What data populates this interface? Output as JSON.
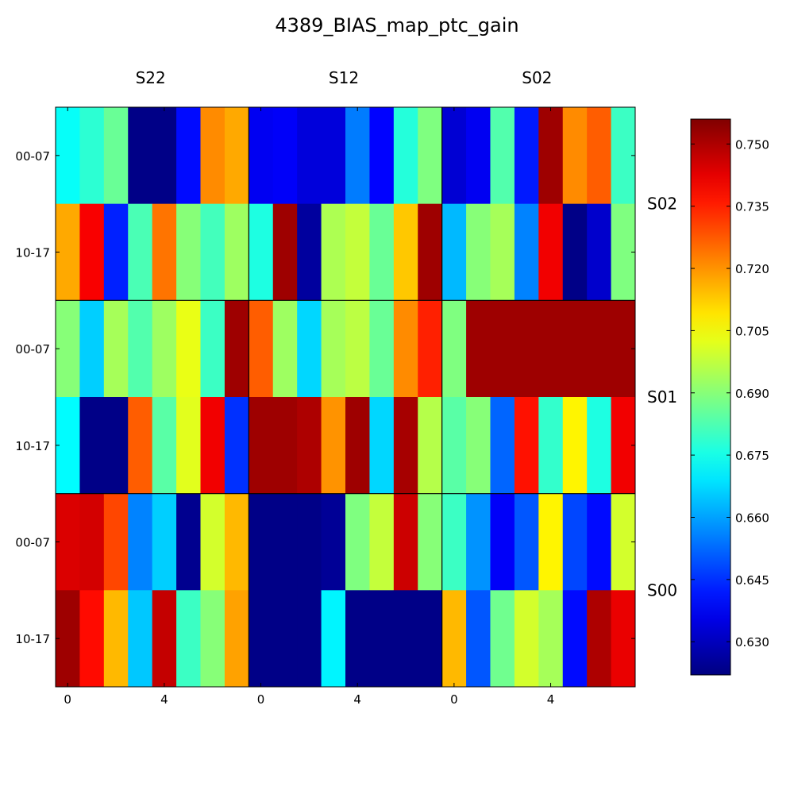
{
  "chart_data": {
    "type": "heatmap",
    "title": "4389_BIAS_map_ptc_gain",
    "column_group_labels": [
      "S22",
      "S12",
      "S02"
    ],
    "row_group_labels": [
      "S02",
      "S01",
      "S00"
    ],
    "row_tick_labels": [
      "00-07",
      "10-17",
      "00-07",
      "10-17",
      "00-07",
      "10-17"
    ],
    "x_tick_labels": [
      "0",
      "4",
      "0",
      "4",
      "0",
      "4"
    ],
    "x_tick_positions": [
      0,
      4,
      8,
      12,
      16,
      20
    ],
    "n_columns": 24,
    "n_rows": 6,
    "colormap": "jet",
    "colorbar": {
      "min": 0.622,
      "max": 0.756,
      "ticks": [
        0.63,
        0.645,
        0.66,
        0.675,
        0.69,
        0.705,
        0.72,
        0.735,
        0.75
      ],
      "tick_labels": [
        "0.630",
        "0.645",
        "0.660",
        "0.675",
        "0.690",
        "0.705",
        "0.720",
        "0.735",
        "0.750"
      ]
    },
    "values": [
      [
        0.673,
        0.678,
        0.686,
        0.623,
        0.623,
        0.64,
        0.721,
        0.717,
        0.637,
        0.638,
        0.634,
        0.634,
        0.655,
        0.639,
        0.677,
        0.689,
        0.633,
        0.637,
        0.683,
        0.642,
        0.752,
        0.721,
        0.727,
        0.68
      ],
      [
        0.717,
        0.74,
        0.643,
        0.682,
        0.724,
        0.69,
        0.681,
        0.693,
        0.676,
        0.752,
        0.626,
        0.695,
        0.698,
        0.686,
        0.713,
        0.752,
        0.663,
        0.69,
        0.694,
        0.656,
        0.741,
        0.623,
        0.632,
        0.689
      ],
      [
        0.69,
        0.666,
        0.694,
        0.683,
        0.693,
        0.703,
        0.68,
        0.752,
        0.727,
        0.693,
        0.667,
        0.694,
        0.697,
        0.686,
        0.721,
        0.735,
        0.689,
        0.752,
        0.752,
        0.752,
        0.752,
        0.752,
        0.752,
        0.752
      ],
      [
        0.672,
        0.623,
        0.623,
        0.727,
        0.684,
        0.702,
        0.741,
        0.645,
        0.752,
        0.752,
        0.75,
        0.72,
        0.752,
        0.667,
        0.751,
        0.696,
        0.684,
        0.69,
        0.652,
        0.737,
        0.679,
        0.707,
        0.676,
        0.741
      ],
      [
        0.744,
        0.745,
        0.73,
        0.656,
        0.666,
        0.624,
        0.7,
        0.715,
        0.623,
        0.623,
        0.623,
        0.625,
        0.689,
        0.698,
        0.746,
        0.69,
        0.68,
        0.658,
        0.638,
        0.65,
        0.707,
        0.648,
        0.64,
        0.7
      ],
      [
        0.752,
        0.738,
        0.715,
        0.665,
        0.747,
        0.68,
        0.69,
        0.718,
        0.623,
        0.623,
        0.623,
        0.671,
        0.623,
        0.623,
        0.623,
        0.623,
        0.715,
        0.65,
        0.687,
        0.7,
        0.694,
        0.64,
        0.75,
        0.742
      ]
    ]
  }
}
